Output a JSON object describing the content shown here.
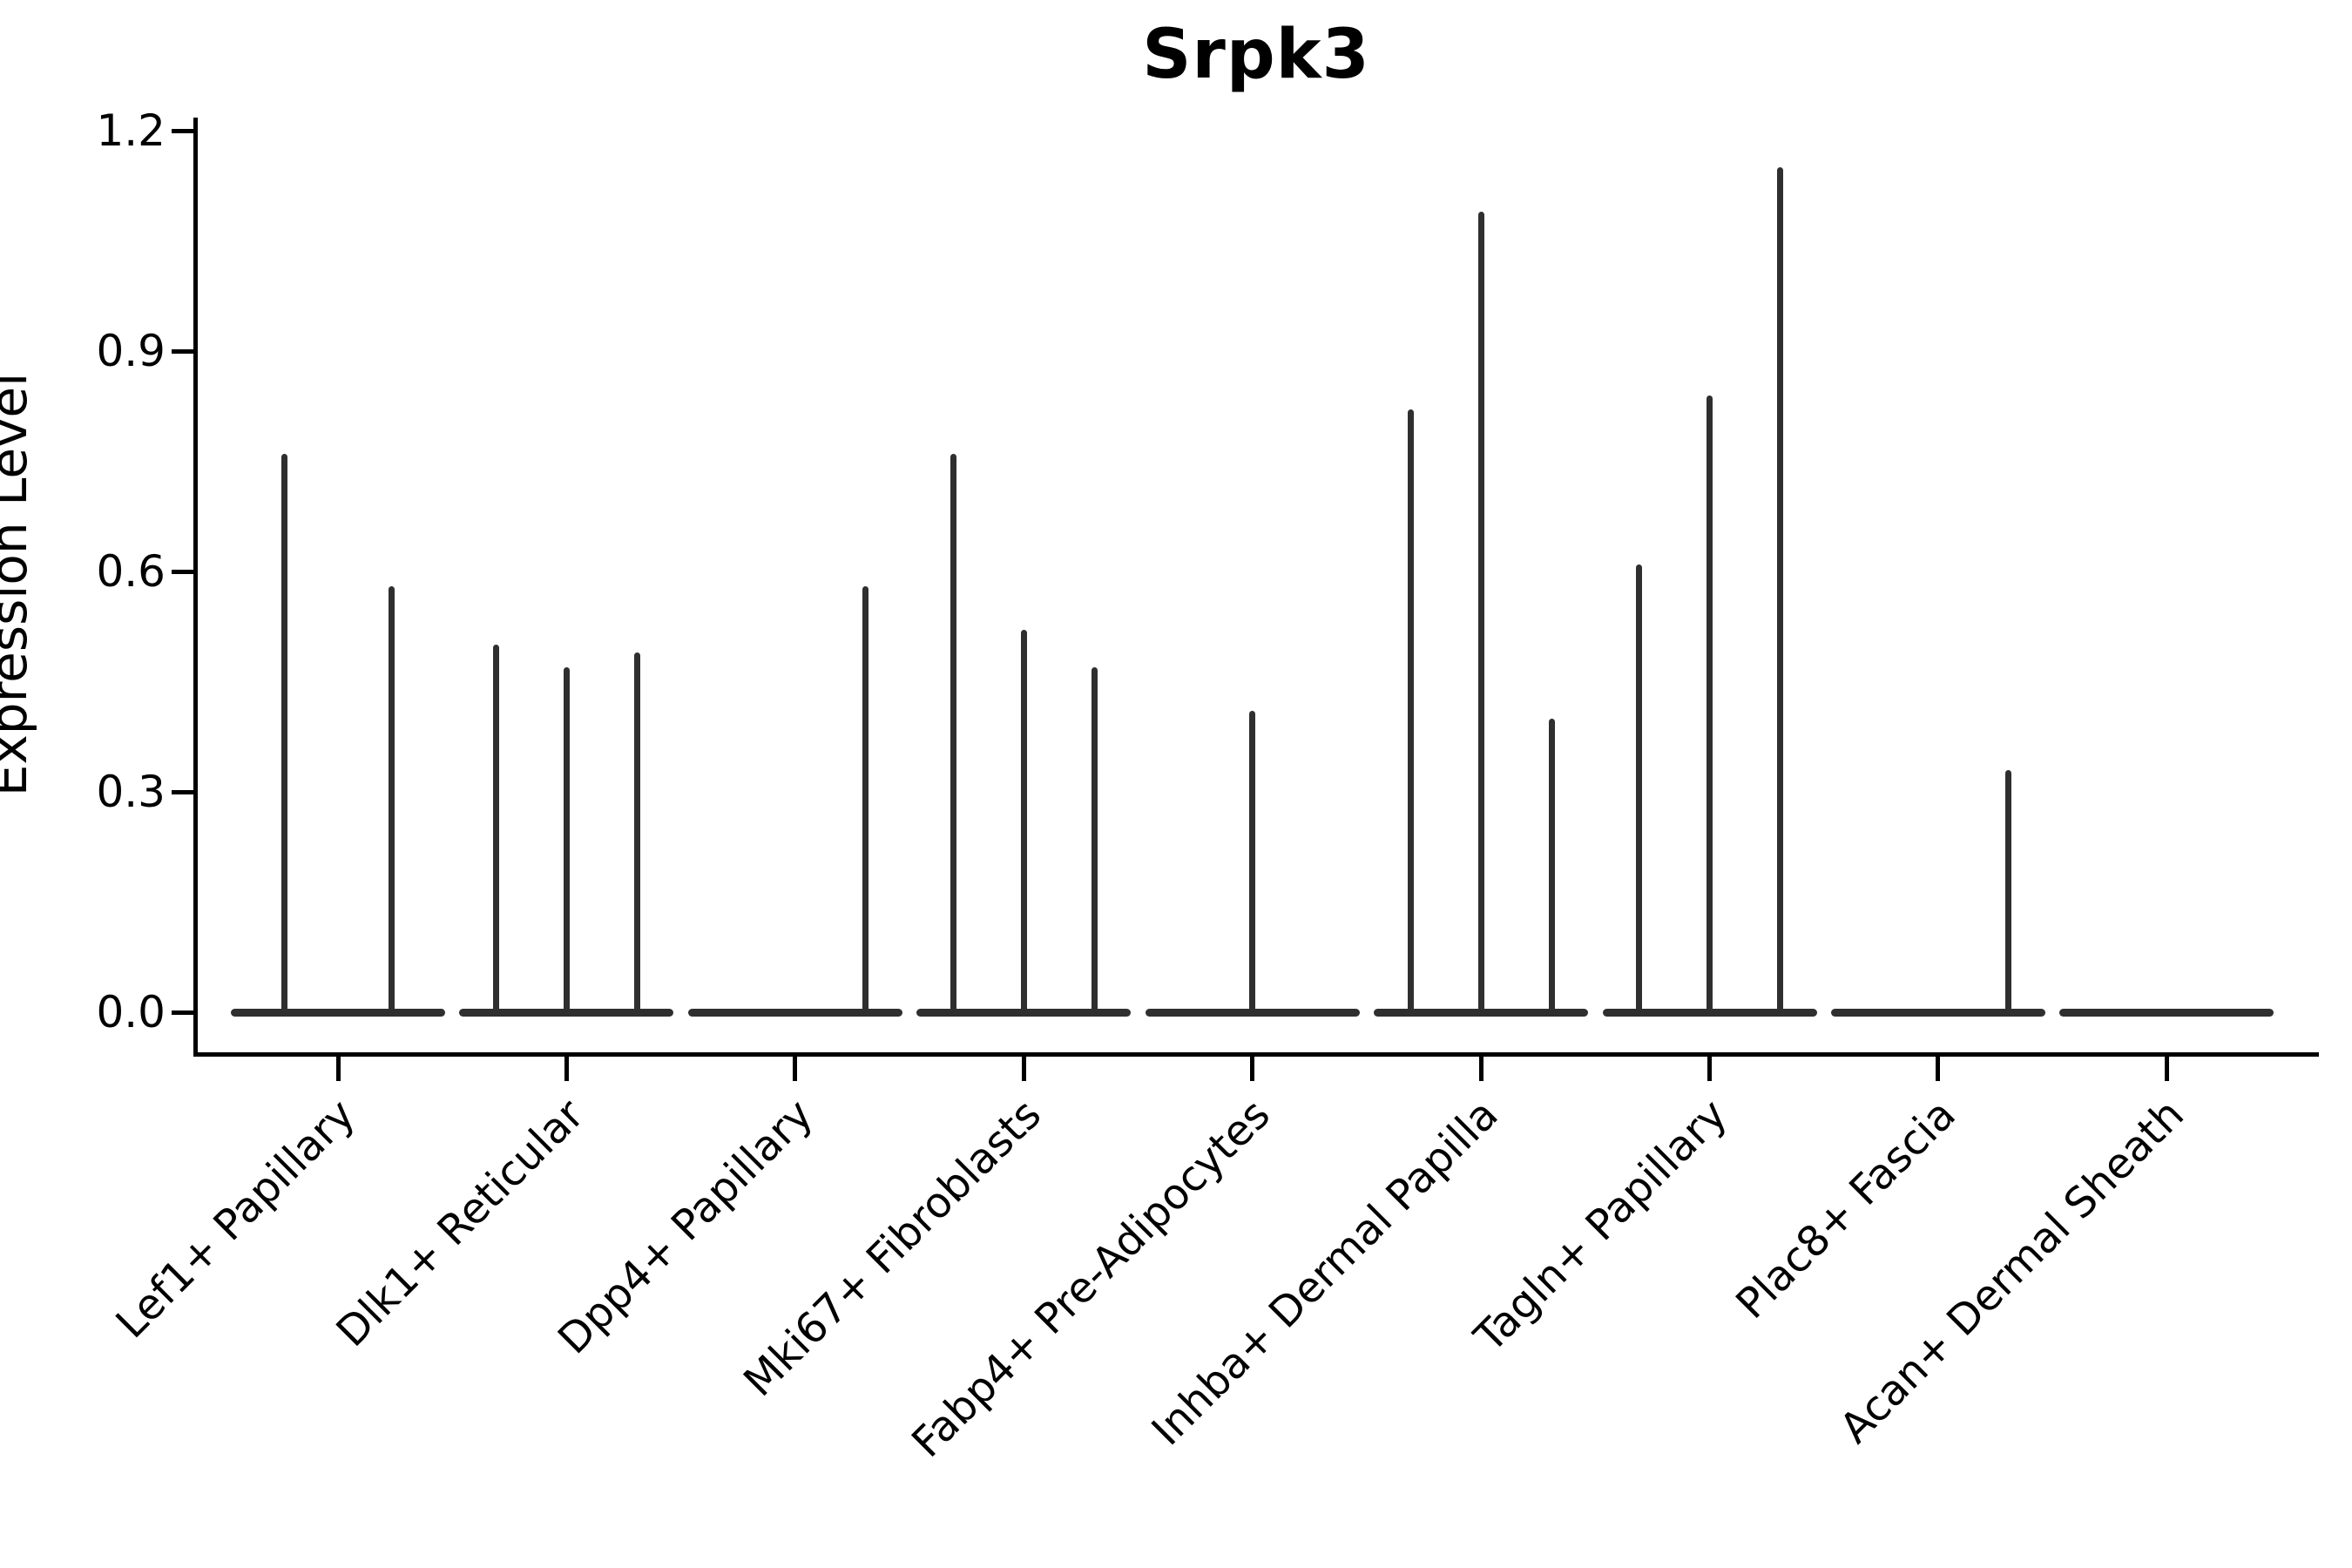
{
  "chart_data": {
    "type": "violin",
    "title": "Srpk3",
    "ylabel": "Expression Level",
    "xlabel": "",
    "grid": false,
    "legend": "none",
    "background": "#ffffff",
    "axis_color": "#000000",
    "violin_color": "#2f2f2f",
    "ylim": [
      -0.06,
      1.22
    ],
    "yticks": {
      "values": [
        0.0,
        0.3,
        0.6,
        0.9,
        1.2
      ],
      "labels": [
        "0.0",
        "0.3",
        "0.6",
        "0.9",
        "1.2"
      ]
    },
    "categories": [
      "Lef1+ Papillary",
      "Dlk1+ Reticular",
      "Dpp4+ Papillary",
      "Mki67+ Fibroblasts",
      "Fabp4+ Pre-Adipocytes",
      "Inhba+ Dermal Papilla",
      "Tagln+ Papillary",
      "Plac8+ Fascia",
      "Acan+ Dermal Sheath"
    ],
    "series": [
      {
        "category": "Lef1+ Papillary",
        "violin_maxima": [
          0.76,
          0.58
        ]
      },
      {
        "category": "Dlk1+ Reticular",
        "violin_maxima": [
          0.5,
          0.47,
          0.49
        ]
      },
      {
        "category": "Dpp4+ Papillary",
        "violin_maxima": [
          0,
          0,
          0.58
        ]
      },
      {
        "category": "Mki67+ Fibroblasts",
        "violin_maxima": [
          0.76,
          0.52,
          0.47
        ]
      },
      {
        "category": "Fabp4+ Pre-Adipocytes",
        "violin_maxima": [
          0,
          0.41,
          0
        ]
      },
      {
        "category": "Inhba+ Dermal Papilla",
        "violin_maxima": [
          0.82,
          1.09,
          0.4
        ]
      },
      {
        "category": "Tagln+ Papillary",
        "violin_maxima": [
          0.61,
          0.84,
          1.15
        ]
      },
      {
        "category": "Plac8+ Fascia",
        "violin_maxima": [
          0,
          0,
          0.33
        ]
      },
      {
        "category": "Acan+ Dermal Sheath",
        "violin_maxima": [
          0,
          0,
          0
        ]
      }
    ]
  }
}
